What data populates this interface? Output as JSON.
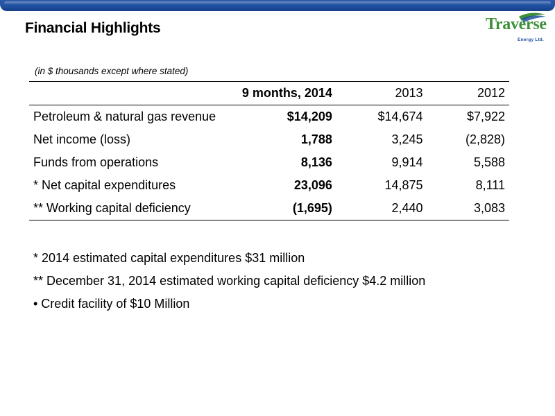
{
  "header": {
    "title": "Financial Highlights",
    "logo": {
      "name": "Traverse",
      "subtitle": "Energy Ltd.",
      "color": "#3e8f3a",
      "accent_color": "#1f4f9f"
    },
    "top_bar_color": "#1f4f9f"
  },
  "table": {
    "note": "(in $ thousands except where stated)",
    "columns": {
      "label": "",
      "col_2014": "9 months, 2014",
      "col_2013": "2013",
      "col_2012": "2012"
    },
    "rows": [
      {
        "label": "Petroleum & natural gas revenue",
        "v2014": "$14,209",
        "v2013": "$14,674",
        "v2012": "$7,922"
      },
      {
        "label": "Net income (loss)",
        "v2014": "1,788",
        "v2013": "3,245",
        "v2012": "(2,828)"
      },
      {
        "label": "Funds from operations",
        "v2014": "8,136",
        "v2013": "9,914",
        "v2012": "5,588"
      },
      {
        "label": "* Net capital expenditures",
        "v2014": "23,096",
        "v2013": "14,875",
        "v2012": "8,111"
      },
      {
        "label": "** Working capital deficiency",
        "v2014": "(1,695)",
        "v2013": "2,440",
        "v2012": "3,083"
      }
    ]
  },
  "notes": [
    "*  2014 estimated capital expenditures $31 million",
    "** December 31, 2014 estimated working capital deficiency $4.2 million",
    "•  Credit facility of $10 Million"
  ]
}
